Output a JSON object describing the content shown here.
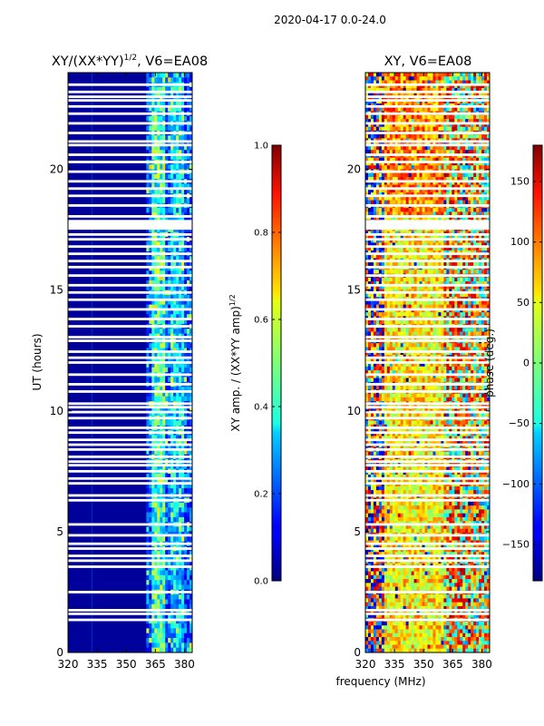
{
  "figure": {
    "suptitle": "2020-04-17 0.0-24.0",
    "xlabel_shared": "frequency (MHz)"
  },
  "chart_data": [
    {
      "type": "heatmap",
      "title": "XY/(XX*YY)^{1/2}, V6=EA08",
      "title_main": "XY/(XX*YY)",
      "title_sup": "1/2",
      "title_tail": ", V6=EA08",
      "xlabel": "",
      "ylabel": "UT (hours)",
      "xlim": [
        320,
        384
      ],
      "ylim": [
        0,
        24
      ],
      "xticks": [
        320,
        335,
        350,
        365,
        380
      ],
      "yticks": [
        0,
        5,
        10,
        15,
        20
      ],
      "colormap": "jet",
      "colorbar": {
        "label_main": "XY amp. / (XX*YY amp)",
        "label_sup": "1/2",
        "range": [
          0.0,
          1.0
        ],
        "ticks": [
          0.0,
          0.2,
          0.4,
          0.6,
          0.8,
          1.0
        ],
        "tick_labels": [
          "0.0",
          "0.2",
          "0.4",
          "0.6",
          "0.8",
          "1.0"
        ]
      }
    },
    {
      "type": "heatmap",
      "title": "XY, V6=EA08",
      "xlabel": "frequency (MHz)",
      "ylabel": "",
      "xlim": [
        320,
        384
      ],
      "ylim": [
        0,
        24
      ],
      "xticks": [
        320,
        335,
        350,
        365,
        380
      ],
      "yticks": [
        0,
        5,
        10,
        15,
        20
      ],
      "colormap": "jet",
      "colorbar": {
        "label": "phase (deg.)",
        "range": [
          -180,
          180
        ],
        "ticks": [
          -150,
          -100,
          -50,
          0,
          50,
          100,
          150
        ],
        "tick_labels": [
          "−150",
          "−100",
          "−50",
          "0",
          "50",
          "100",
          "150"
        ]
      }
    }
  ],
  "flagged_hours": [
    1.35,
    1.6,
    1.75,
    2.5,
    3.55,
    3.8,
    4.0,
    4.3,
    4.5,
    4.85,
    5.3,
    6.3,
    6.5,
    7.0,
    7.2,
    7.5,
    7.75,
    7.9,
    8.1,
    8.4,
    8.6,
    8.8,
    9.1,
    9.3,
    9.7,
    9.95,
    10.15,
    10.3,
    10.8,
    11.1,
    11.5,
    12.0,
    12.2,
    12.45,
    12.9,
    13.05,
    13.5,
    13.8,
    14.2,
    14.6,
    14.9,
    15.2,
    15.6,
    15.95,
    16.2,
    16.5,
    16.8,
    17.1,
    17.3,
    17.55,
    17.7,
    17.85,
    18.05,
    18.5,
    18.9,
    19.2,
    19.5,
    19.9,
    20.3,
    20.6,
    21.0,
    21.15,
    21.5,
    21.9,
    22.3,
    22.6,
    22.85,
    23.0,
    23.2,
    23.5
  ],
  "flagged_band_hours": [
    [
      17.5,
      17.85
    ]
  ]
}
